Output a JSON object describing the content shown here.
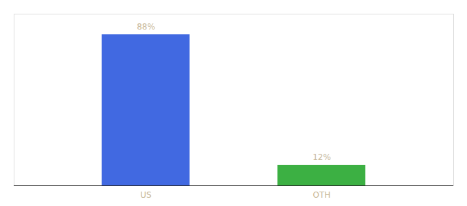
{
  "chart_data": {
    "type": "bar",
    "categories": [
      "US",
      "OTH"
    ],
    "values": [
      88,
      12
    ],
    "colors": [
      "#4169e1",
      "#3cb043"
    ],
    "value_labels": [
      "88%",
      "12%"
    ],
    "data_labels": true,
    "ylim": [
      0,
      100
    ],
    "tick_labels": "x",
    "grid": false
  }
}
